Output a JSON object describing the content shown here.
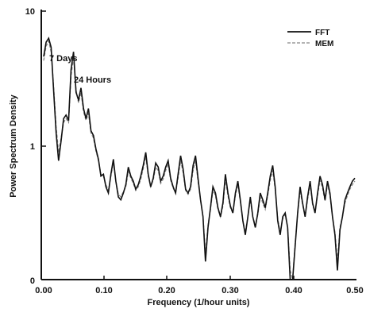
{
  "chart_data": {
    "type": "line",
    "title": "",
    "xlabel": "Frequency (1/hour units)",
    "ylabel": "Power Spectrum Density",
    "xlim": [
      0.0,
      0.5
    ],
    "ylim": [
      0,
      10
    ],
    "y_scale": "log-like (tick labels 0, 1, 10)",
    "x_ticks": [
      "0.00",
      "0.10",
      "0.20",
      "0.30",
      "0.40",
      "0.50"
    ],
    "y_ticks": [
      "0",
      "1",
      "10"
    ],
    "grid": false,
    "legend": {
      "position": "top-right",
      "entries": [
        {
          "label": "FFT",
          "style": "solid",
          "color": "#111111"
        },
        {
          "label": "MEM",
          "style": "dashed",
          "color": "#888888"
        }
      ]
    },
    "annotations": [
      {
        "text": "7 Days"
      },
      {
        "text": "24 Hours"
      }
    ],
    "series": [
      {
        "name": "FFT",
        "x": [
          0.0,
          0.004,
          0.008,
          0.012,
          0.016,
          0.02,
          0.024,
          0.028,
          0.032,
          0.036,
          0.04,
          0.044,
          0.048,
          0.052,
          0.056,
          0.06,
          0.064,
          0.068,
          0.072,
          0.076,
          0.08,
          0.084,
          0.088,
          0.092,
          0.096,
          0.1,
          0.104,
          0.108,
          0.112,
          0.116,
          0.12,
          0.124,
          0.128,
          0.132,
          0.136,
          0.14,
          0.144,
          0.148,
          0.152,
          0.156,
          0.16,
          0.164,
          0.168,
          0.172,
          0.176,
          0.18,
          0.184,
          0.188,
          0.192,
          0.196,
          0.2,
          0.204,
          0.208,
          0.212,
          0.216,
          0.22,
          0.224,
          0.228,
          0.232,
          0.236,
          0.24,
          0.244,
          0.248,
          0.252,
          0.256,
          0.26,
          0.264,
          0.268,
          0.272,
          0.276,
          0.28,
          0.284,
          0.288,
          0.292,
          0.296,
          0.3,
          0.304,
          0.308,
          0.312,
          0.316,
          0.32,
          0.324,
          0.328,
          0.332,
          0.336,
          0.34,
          0.344,
          0.348,
          0.352,
          0.356,
          0.36,
          0.364,
          0.368,
          0.372,
          0.376,
          0.38,
          0.384,
          0.388,
          0.392,
          0.396,
          0.4,
          0.404,
          0.408,
          0.412,
          0.416,
          0.42,
          0.424,
          0.428,
          0.432,
          0.436,
          0.44,
          0.444,
          0.448,
          0.452,
          0.456,
          0.46,
          0.464,
          0.468,
          0.472,
          0.476,
          0.48,
          0.484,
          0.488,
          0.492,
          0.496,
          0.5
        ],
        "y": [
          4.6,
          5.9,
          6.3,
          5.4,
          2.6,
          1.25,
          0.78,
          1.1,
          1.6,
          1.7,
          1.55,
          3.7,
          5.0,
          2.5,
          2.2,
          2.7,
          1.9,
          1.6,
          1.9,
          1.3,
          1.2,
          0.95,
          0.8,
          0.6,
          0.62,
          0.5,
          0.45,
          0.62,
          0.8,
          0.55,
          0.42,
          0.4,
          0.45,
          0.52,
          0.7,
          0.6,
          0.55,
          0.48,
          0.52,
          0.6,
          0.72,
          0.9,
          0.62,
          0.5,
          0.58,
          0.75,
          0.7,
          0.55,
          0.6,
          0.7,
          0.78,
          0.58,
          0.5,
          0.45,
          0.62,
          0.85,
          0.68,
          0.48,
          0.45,
          0.5,
          0.72,
          0.85,
          0.58,
          0.4,
          0.3,
          0.14,
          0.25,
          0.35,
          0.5,
          0.45,
          0.35,
          0.3,
          0.38,
          0.62,
          0.45,
          0.36,
          0.32,
          0.45,
          0.55,
          0.4,
          0.28,
          0.22,
          0.3,
          0.42,
          0.3,
          0.25,
          0.32,
          0.45,
          0.4,
          0.35,
          0.45,
          0.6,
          0.72,
          0.5,
          0.28,
          0.22,
          0.3,
          0.32,
          0.25,
          0.1,
          0.06,
          0.18,
          0.32,
          0.5,
          0.38,
          0.3,
          0.42,
          0.55,
          0.38,
          0.32,
          0.45,
          0.6,
          0.52,
          0.4,
          0.55,
          0.45,
          0.3,
          0.22,
          0.12,
          0.24,
          0.3,
          0.4,
          0.45,
          0.5,
          0.55,
          0.58
        ]
      },
      {
        "name": "MEM",
        "x": [
          0.0,
          0.004,
          0.008,
          0.012,
          0.016,
          0.02,
          0.024,
          0.028,
          0.032,
          0.036,
          0.04,
          0.044,
          0.048,
          0.052,
          0.056,
          0.06,
          0.064,
          0.068,
          0.072,
          0.076,
          0.08,
          0.084,
          0.088,
          0.092,
          0.096,
          0.1,
          0.104,
          0.108,
          0.112,
          0.116,
          0.12,
          0.124,
          0.128,
          0.132,
          0.136,
          0.14,
          0.144,
          0.148,
          0.152,
          0.156,
          0.16,
          0.164,
          0.168,
          0.172,
          0.176,
          0.18,
          0.184,
          0.188,
          0.192,
          0.196,
          0.2,
          0.204,
          0.208,
          0.212,
          0.216,
          0.22,
          0.224,
          0.228,
          0.232,
          0.236,
          0.24,
          0.244,
          0.248,
          0.252,
          0.256,
          0.26,
          0.264,
          0.268,
          0.272,
          0.276,
          0.28,
          0.284,
          0.288,
          0.292,
          0.296,
          0.3,
          0.304,
          0.308,
          0.312,
          0.316,
          0.32,
          0.324,
          0.328,
          0.332,
          0.336,
          0.34,
          0.344,
          0.348,
          0.352,
          0.356,
          0.36,
          0.364,
          0.368,
          0.372,
          0.376,
          0.38,
          0.384,
          0.388,
          0.392,
          0.396,
          0.4,
          0.404,
          0.408,
          0.412,
          0.416,
          0.42,
          0.424,
          0.428,
          0.432,
          0.436,
          0.44,
          0.444,
          0.448,
          0.452,
          0.456,
          0.46,
          0.464,
          0.468,
          0.472,
          0.476,
          0.48,
          0.484,
          0.488,
          0.492,
          0.496,
          0.5
        ],
        "y": [
          4.3,
          5.5,
          6.0,
          5.0,
          2.8,
          1.4,
          0.9,
          1.15,
          1.5,
          1.6,
          1.5,
          3.3,
          4.6,
          2.6,
          2.1,
          2.5,
          1.8,
          1.55,
          1.75,
          1.25,
          1.15,
          0.92,
          0.78,
          0.62,
          0.6,
          0.52,
          0.47,
          0.6,
          0.75,
          0.55,
          0.44,
          0.42,
          0.46,
          0.5,
          0.65,
          0.58,
          0.53,
          0.47,
          0.5,
          0.57,
          0.68,
          0.84,
          0.6,
          0.5,
          0.56,
          0.7,
          0.66,
          0.53,
          0.57,
          0.66,
          0.74,
          0.56,
          0.49,
          0.45,
          0.58,
          0.78,
          0.64,
          0.47,
          0.44,
          0.48,
          0.66,
          0.78,
          0.55,
          0.4,
          0.3,
          0.16,
          0.26,
          0.34,
          0.47,
          0.43,
          0.34,
          0.3,
          0.36,
          0.57,
          0.43,
          0.35,
          0.32,
          0.43,
          0.52,
          0.39,
          0.28,
          0.23,
          0.3,
          0.4,
          0.3,
          0.26,
          0.31,
          0.42,
          0.38,
          0.34,
          0.43,
          0.56,
          0.66,
          0.48,
          0.29,
          0.23,
          0.29,
          0.31,
          0.25,
          0.12,
          0.08,
          0.19,
          0.31,
          0.47,
          0.37,
          0.3,
          0.4,
          0.52,
          0.37,
          0.32,
          0.43,
          0.56,
          0.49,
          0.39,
          0.52,
          0.43,
          0.3,
          0.23,
          0.14,
          0.25,
          0.3,
          0.38,
          0.43,
          0.48,
          0.52,
          0.55
        ]
      }
    ]
  }
}
